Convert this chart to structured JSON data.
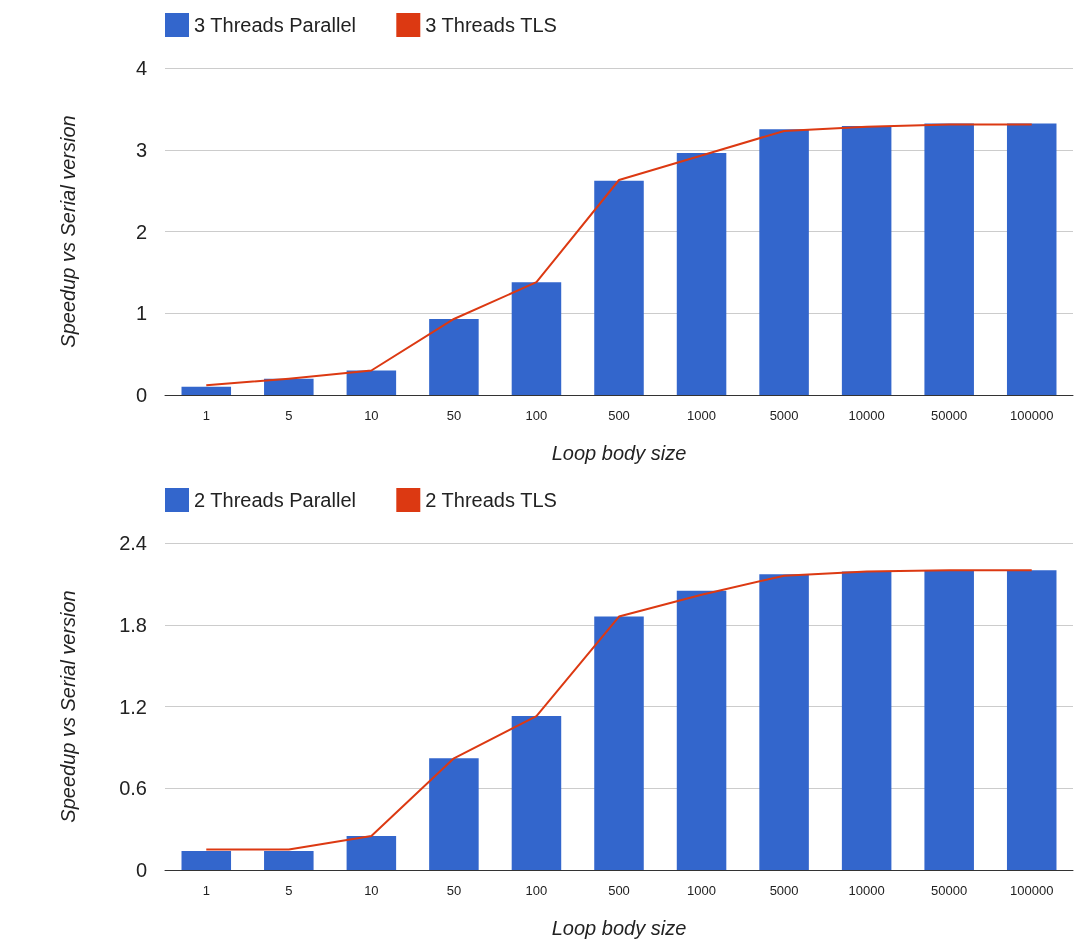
{
  "chart_data": [
    {
      "type": "bar",
      "xlabel": "Loop body size",
      "ylabel": "Speedup vs Serial version",
      "categories": [
        "1",
        "5",
        "10",
        "50",
        "100",
        "500",
        "1000",
        "5000",
        "10000",
        "50000",
        "100000"
      ],
      "series": [
        {
          "name": "3 Threads Parallel",
          "color": "#3366cc",
          "values": [
            0.1,
            0.2,
            0.3,
            0.93,
            1.38,
            2.62,
            2.96,
            3.25,
            3.29,
            3.32,
            3.32
          ]
        },
        {
          "name": "3 Threads TLS",
          "type": "line",
          "color": "#dc3912",
          "values": [
            0.12,
            0.2,
            0.3,
            0.93,
            1.38,
            2.63,
            2.93,
            3.23,
            3.28,
            3.31,
            3.31
          ]
        }
      ],
      "ylim": [
        0,
        4
      ],
      "yticks": [
        0,
        1,
        2,
        3,
        4
      ],
      "grid": "y",
      "legend": "top left",
      "marker": "none"
    },
    {
      "type": "bar",
      "xlabel": "Loop body size",
      "ylabel": "Speedup vs Serial version",
      "categories": [
        "1",
        "5",
        "10",
        "50",
        "100",
        "500",
        "1000",
        "5000",
        "10000",
        "50000",
        "100000"
      ],
      "series": [
        {
          "name": "2 Threads Parallel",
          "color": "#3366cc",
          "values": [
            0.14,
            0.14,
            0.25,
            0.82,
            1.13,
            1.86,
            2.05,
            2.17,
            2.19,
            2.2,
            2.2
          ]
        },
        {
          "name": "2 Threads TLS",
          "type": "line",
          "color": "#dc3912",
          "values": [
            0.15,
            0.15,
            0.25,
            0.82,
            1.13,
            1.86,
            2.02,
            2.16,
            2.19,
            2.2,
            2.2
          ]
        }
      ],
      "ylim": [
        0,
        2.4
      ],
      "yticks": [
        0,
        0.6,
        1.2,
        1.8,
        2.4
      ],
      "grid": "y",
      "legend": "top left",
      "marker": "none"
    }
  ]
}
